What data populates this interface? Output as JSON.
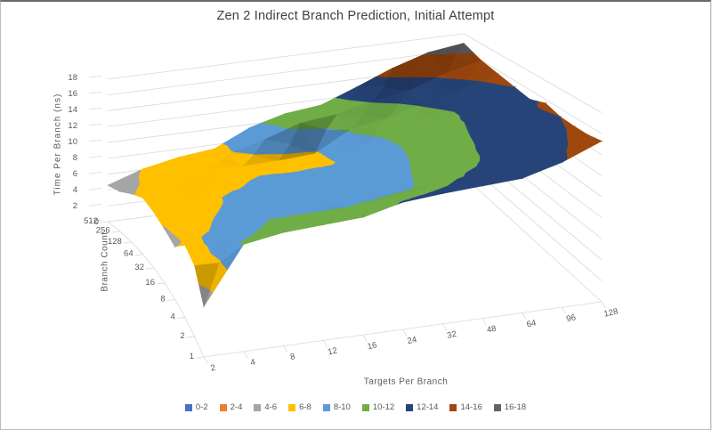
{
  "frame": {
    "background": "#FFFFFF",
    "border_color": "#BDBDBD"
  },
  "chart_data": {
    "type": "surface",
    "title": "Zen 2 Indirect Branch Prediction, Initial Attempt",
    "xlabel": "Targets Per Branch",
    "ylabel": "Branch Count",
    "zlabel": "Time Per Branch (ns)",
    "x_categories": [
      "2",
      "4",
      "8",
      "12",
      "16",
      "24",
      "32",
      "48",
      "64",
      "96",
      "128"
    ],
    "y_categories": [
      "1",
      "2",
      "4",
      "8",
      "16",
      "32",
      "64",
      "128",
      "256",
      "512"
    ],
    "z_ticks": [
      "0",
      "2",
      "4",
      "6",
      "8",
      "10",
      "12",
      "14",
      "16",
      "18"
    ],
    "zmin": 0,
    "zmax": 18,
    "band_size": 2,
    "grid_color": "#D9D9D9",
    "text_color": "#595959",
    "title_color": "#404040",
    "legend_position": "bottom",
    "bands": [
      {
        "label": "0-2",
        "color": "#4472C4"
      },
      {
        "label": "2-4",
        "color": "#ED7D31"
      },
      {
        "label": "4-6",
        "color": "#A5A5A5"
      },
      {
        "label": "6-8",
        "color": "#FFC000"
      },
      {
        "label": "8-10",
        "color": "#5B9BD5"
      },
      {
        "label": "10-12",
        "color": "#70AD47"
      },
      {
        "label": "12-14",
        "color": "#264478"
      },
      {
        "label": "14-16",
        "color": "#9E480E"
      },
      {
        "label": "16-18",
        "color": "#636363"
      }
    ],
    "series": [
      {
        "name": "1",
        "values": [
          4.8,
          10.2,
          10.8,
          11.0,
          11.2,
          12.1,
          12.4,
          12.6,
          12.8,
          13.8,
          15.3
        ]
      },
      {
        "name": "2",
        "values": [
          7.0,
          9.4,
          10.2,
          10.3,
          10.5,
          11.2,
          11.6,
          12.2,
          12.5,
          13.4,
          14.6
        ]
      },
      {
        "name": "4",
        "values": [
          7.4,
          8.8,
          9.6,
          9.5,
          9.3,
          9.6,
          10.1,
          11.6,
          12.3,
          13.2,
          14.2
        ]
      },
      {
        "name": "8",
        "values": [
          5.6,
          8.0,
          9.0,
          9.0,
          8.8,
          9.0,
          9.8,
          11.2,
          12.2,
          13.0,
          14.0
        ]
      },
      {
        "name": "16",
        "values": [
          5.9,
          7.4,
          8.5,
          8.6,
          8.6,
          8.8,
          9.4,
          10.8,
          12.0,
          12.8,
          14.3
        ]
      },
      {
        "name": "32",
        "values": [
          6.3,
          7.6,
          7.8,
          8.3,
          8.5,
          8.8,
          9.2,
          10.5,
          11.8,
          12.6,
          13.6
        ]
      },
      {
        "name": "64",
        "values": [
          6.6,
          7.7,
          7.5,
          7.8,
          7.6,
          7.7,
          9.5,
          10.5,
          11.5,
          12.8,
          14.0
        ]
      },
      {
        "name": "128",
        "values": [
          5.8,
          7.3,
          7.6,
          7.4,
          7.5,
          7.8,
          10.2,
          11.0,
          12.2,
          13.3,
          14.6
        ]
      },
      {
        "name": "256",
        "values": [
          4.9,
          6.9,
          7.4,
          7.8,
          9.0,
          10.5,
          11.0,
          12.1,
          12.8,
          14.3,
          15.4
        ]
      },
      {
        "name": "512",
        "values": [
          4.6,
          6.1,
          7.0,
          7.5,
          9.6,
          10.8,
          11.3,
          13.0,
          14.8,
          16.2,
          16.8
        ]
      }
    ]
  }
}
